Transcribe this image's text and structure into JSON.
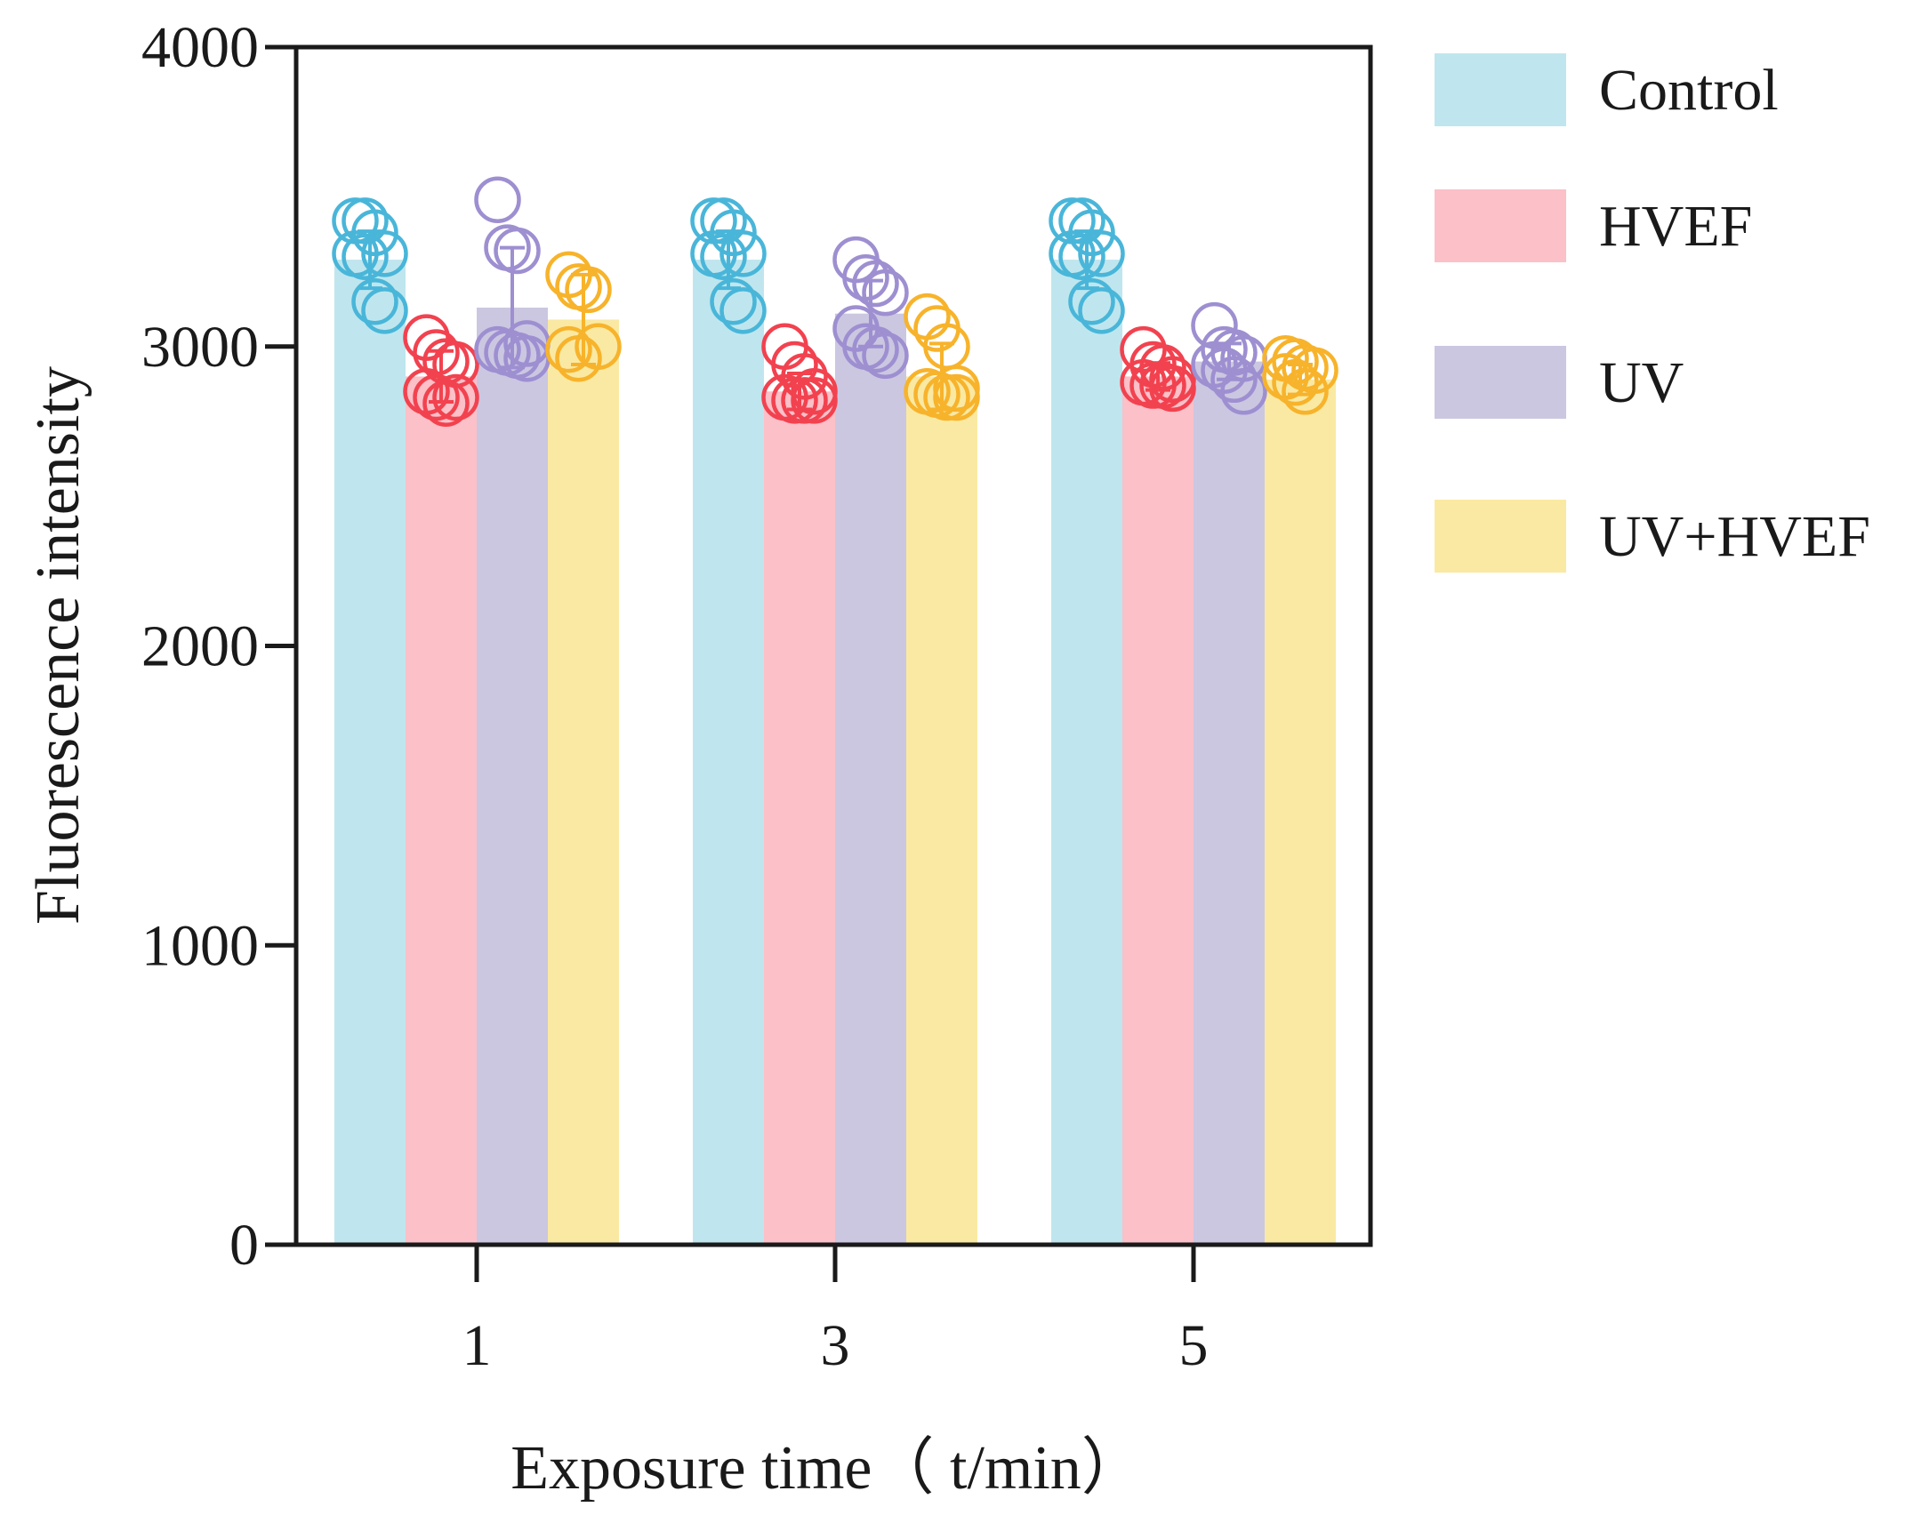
{
  "chart_data": {
    "type": "bar",
    "title": "",
    "xlabel": "Exposure time（ t/min）",
    "ylabel": "Fluorescence intensity",
    "categories": [
      "1",
      "3",
      "5"
    ],
    "ylim": [
      0,
      4000
    ],
    "yticks": [
      0,
      1000,
      2000,
      3000,
      4000
    ],
    "yticks_labels": [
      "0",
      "1000",
      "2000",
      "3000",
      "4000"
    ],
    "grid": false,
    "legend_position": "right",
    "series": [
      {
        "name": "Control",
        "color": "#bfe6ee",
        "point_color": "#49b6d9",
        "values": [
          3290,
          3290,
          3290
        ],
        "error": [
          95,
          95,
          95
        ],
        "points": [
          [
            3420,
            3420,
            3380,
            3310,
            3310,
            3300,
            3150,
            3120
          ],
          [
            3420,
            3420,
            3380,
            3310,
            3310,
            3300,
            3150,
            3120
          ],
          [
            3420,
            3420,
            3380,
            3310,
            3310,
            3300,
            3150,
            3120
          ]
        ]
      },
      {
        "name": "HVEF",
        "color": "#fbc0c8",
        "point_color": "#f2424f",
        "values": [
          2900,
          2850,
          2900
        ],
        "error": [
          85,
          60,
          45
        ],
        "points": [
          [
            3030,
            2980,
            2950,
            2940,
            2850,
            2830,
            2810,
            2830
          ],
          [
            3000,
            2940,
            2900,
            2850,
            2830,
            2820,
            2820,
            2820
          ],
          [
            2990,
            2940,
            2930,
            2890,
            2880,
            2870,
            2870,
            2860
          ]
        ]
      },
      {
        "name": "UV",
        "color": "#cbc7e1",
        "point_color": "#9e8fd1",
        "values": [
          3130,
          3110,
          2950
        ],
        "error": [
          200,
          110,
          60
        ],
        "points": [
          [
            3490,
            3330,
            3320,
            3010,
            2990,
            2980,
            2970,
            2960
          ],
          [
            3290,
            3230,
            3210,
            3180,
            3060,
            3000,
            2990,
            2970
          ],
          [
            3070,
            2990,
            2980,
            2960,
            2940,
            2920,
            2890,
            2850
          ]
        ]
      },
      {
        "name": "UV+HVEF",
        "color": "#fae9a3",
        "point_color": "#f7b32b",
        "values": [
          3090,
          2900,
          2890
        ],
        "error": [
          150,
          110,
          50
        ],
        "points": [
          [
            3240,
            3200,
            3190,
            3000,
            2990,
            2960
          ],
          [
            3100,
            3060,
            3000,
            2860,
            2850,
            2840,
            2830,
            2830
          ],
          [
            2960,
            2950,
            2930,
            2920,
            2900,
            2880,
            2850
          ]
        ]
      }
    ]
  }
}
